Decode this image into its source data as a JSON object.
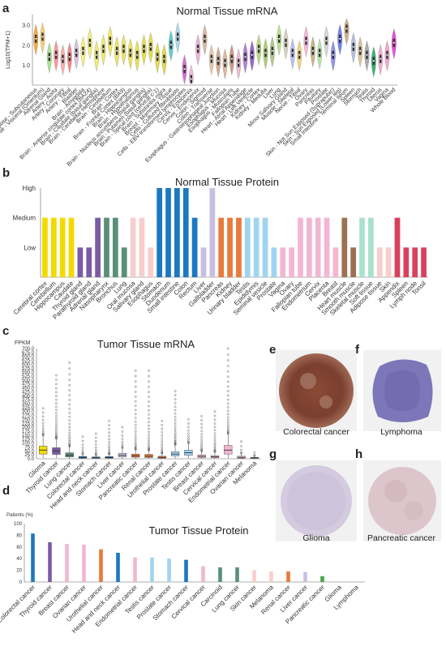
{
  "panels": {
    "a": {
      "letter": "a",
      "title": "Normal Tissue mRNA"
    },
    "b": {
      "letter": "b",
      "title": "Normal Tissue Protein"
    },
    "c": {
      "letter": "c",
      "title": "Tumor Tissue mRNA"
    },
    "d": {
      "letter": "d",
      "title": "Tumor Tissue Protein"
    },
    "e": {
      "letter": "e",
      "caption": "Colorectal cancer"
    },
    "f": {
      "letter": "f",
      "caption": "Lymphoma"
    },
    "g": {
      "letter": "g",
      "caption": "Glioma"
    },
    "h": {
      "letter": "h",
      "caption": "Pancreatic cancer"
    }
  },
  "chart_data": [
    {
      "id": "a",
      "type": "violin",
      "title": "Normal Tissue mRNA",
      "ylabel": "Log10(TPM+1)",
      "yticks": [
        "1.0",
        "2.0",
        "3.0"
      ],
      "ylim": [
        0,
        3.5
      ],
      "categories": [
        "Adipose - Subcutaneous",
        "Adipose - Visceral (Omentum)",
        "Adrenal Gland",
        "Artery - Aorta",
        "Artery - Coronary",
        "Artery - Tibial",
        "Bladder",
        "Brain - Amygdala",
        "Brain - Anterior cingulate cortex (BA24)",
        "Brain - Caudate (basal ganglia)",
        "Brain - Cerebellar Hemisphere",
        "Brain - Cerebellum",
        "Brain - Cortex",
        "Brain - Frontal Cortex (BA9)",
        "Brain - Hippocampus",
        "Brain - Hypothalamus",
        "Brain - Nucleus accumbens (basal ganglia)",
        "Brain - Putamen (basal ganglia)",
        "Brain - Spinal cord (cervical c-1)",
        "Brain - Substantia nigra",
        "Breast - Mammary Tissue",
        "Cells - Cultured fibroblasts",
        "Cells - EBV-transformed lymphocytes",
        "Cervix - Ectocervix",
        "Cervix - Endocervix",
        "Colon - Sigmoid",
        "Colon - Transverse",
        "Esophagus - Gastroesophageal Junction",
        "Esophagus - Mucosa",
        "Esophagus - Muscularis",
        "Fallopian Tube",
        "Heart - Atrial Appendage",
        "Heart - Left Ventricle",
        "Kidney - Cortex",
        "Kidney - Medulla",
        "Liver",
        "Lung",
        "Minor Salivary Gland",
        "Muscle - Skeletal",
        "Nerve - Tibial",
        "Ovary",
        "Pancreas",
        "Pituitary",
        "Prostate",
        "Skin - Not Sun Exposed (Suprapubic)",
        "Skin - Sun Exposed (Lower leg)",
        "Small Intestine - Terminal Ileum",
        "Spleen",
        "Stomach",
        "Testis",
        "Thyroid",
        "Uterus",
        "Vagina",
        "Whole Blood"
      ],
      "medians": [
        2.3,
        2.4,
        1.4,
        1.5,
        1.3,
        1.4,
        1.6,
        1.7,
        2.1,
        1.5,
        1.8,
        2.2,
        1.7,
        1.8,
        1.6,
        1.5,
        1.8,
        1.9,
        1.4,
        1.3,
        2.0,
        2.4,
        0.8,
        0.3,
        1.8,
        2.3,
        1.3,
        1.2,
        1.1,
        1.3,
        1.1,
        1.4,
        1.5,
        1.8,
        1.6,
        1.7,
        2.3,
        2.1,
        1.6,
        1.5,
        2.2,
        1.7,
        1.6,
        2.2,
        1.5,
        2.3,
        2.8,
        1.9,
        1.7,
        1.5,
        1.2,
        1.3,
        1.5,
        2.1
      ],
      "colors": [
        "#f4a32a",
        "#f7c96a",
        "#9ee27f",
        "#f7908f",
        "#f6a7a5",
        "#f57d7c",
        "#d7bcd9",
        "#f7f171",
        "#f4ef6a",
        "#f1ea63",
        "#f0e85e",
        "#efe659",
        "#ede454",
        "#ebe250",
        "#e9e04b",
        "#e7de47",
        "#e5dc42",
        "#e3da3e",
        "#e1d83a",
        "#dfd636",
        "#4dc7c9",
        "#a7d4ea",
        "#cc66cc",
        "#ecb8d8",
        "#eaa9d1",
        "#d9b49a",
        "#e1c3a3",
        "#cfa386",
        "#d9b39a",
        "#c49275",
        "#e9b5cf",
        "#a973d0",
        "#9356c4",
        "#b3d575",
        "#a2cb63",
        "#a9c47c",
        "#b3e07c",
        "#cfcfb7",
        "#b9b7f0",
        "#f4d06d",
        "#f7b0d6",
        "#c4ad7f",
        "#a9e3a3",
        "#d4d4d4",
        "#7f8cf4",
        "#6675ec",
        "#caa780",
        "#aebbd6",
        "#d8bd97",
        "#a3a3a3",
        "#2aa968",
        "#f6a1cb",
        "#f39bc6",
        "#e23fd2"
      ]
    },
    {
      "id": "b",
      "type": "bar",
      "title": "Normal Tissue Protein",
      "ytick_labels": [
        "Low",
        "Medium",
        "High"
      ],
      "levels_scale": {
        "Low": 1,
        "Medium": 2,
        "High": 3
      },
      "categories": [
        "Cerebral cortex",
        "Cerebellum",
        "Hippocampus",
        "Caudate",
        "Thyroid gland",
        "Parathyroid gland",
        "Adrenal gland",
        "Nasopharynx",
        "Bronchus",
        "Lung",
        "Oral mucosa",
        "Salivary gland",
        "Esophagus",
        "Stomach",
        "Duodenum",
        "Small intestine",
        "Colon",
        "Rectum",
        "Liver",
        "Gallbladder",
        "Pancreas",
        "Kidney",
        "Urinary bladder",
        "Testis",
        "Epididymis",
        "Seminal vesicle",
        "Prostate",
        "Vagina",
        "Ovary",
        "Fallopian tube",
        "Endometrium",
        "Cervix",
        "Placenta",
        "Breast",
        "Heart muscle",
        "Smooth muscle",
        "Skeletal muscle",
        "Soft tissue",
        "Adipose tissue",
        "Skin",
        "Appendix",
        "Spleen",
        "Lymph node",
        "Tonsil"
      ],
      "values": [
        2,
        2,
        2,
        2,
        1,
        1,
        2,
        2,
        2,
        1,
        2,
        2,
        1,
        3,
        3,
        3,
        3,
        2,
        1,
        3,
        2,
        2,
        2,
        2,
        2,
        2,
        1,
        1,
        1,
        2,
        2,
        2,
        2,
        1,
        2,
        1,
        2,
        2,
        1,
        1,
        2,
        1,
        1,
        1
      ],
      "colors": [
        "#f2da00",
        "#f2da00",
        "#f2da00",
        "#f2da00",
        "#7b5ba6",
        "#7b5ba6",
        "#7b5ba6",
        "#5a8f79",
        "#5a8f79",
        "#5a8f79",
        "#f8cdcd",
        "#f8cdcd",
        "#f8cdcd",
        "#1c78c0",
        "#1c78c0",
        "#1c78c0",
        "#1c78c0",
        "#1c78c0",
        "#c8bfe0",
        "#c8bfe0",
        "#e87a3c",
        "#e87a3c",
        "#e87a3c",
        "#9fd4f0",
        "#9fd4f0",
        "#9fd4f0",
        "#9fd4f0",
        "#f3b6d2",
        "#f3b6d2",
        "#f3b6d2",
        "#f3b6d2",
        "#f3b6d2",
        "#f3b6d2",
        "#f3b6d2",
        "#9c7152",
        "#9c7152",
        "#a9e2cc",
        "#a9e2cc",
        "#f8cdcd",
        "#f8cdcd",
        "#d8415c",
        "#d8415c",
        "#d8415c",
        "#d8415c"
      ]
    },
    {
      "id": "c",
      "type": "box",
      "title": "Tumor Tissue mRNA",
      "ylabel": "FPKM",
      "yticks": [
        "0.0",
        "25.0",
        "50.0",
        "75.0",
        "100.0",
        "125.0",
        "150.0",
        "175.0",
        "200.0",
        "225.0",
        "250.0",
        "275.0",
        "300.0",
        "325.0",
        "350.0",
        "375.0",
        "400.0",
        "425.0",
        "450.0",
        "475.0",
        "500.0",
        "525.0",
        "550.0",
        "575.0",
        "600.0",
        "625.0",
        "650.0",
        "675.0",
        "700.0"
      ],
      "ylim": [
        0,
        700
      ],
      "categories": [
        "Glioma",
        "Thyroid cancer",
        "Lung cancer",
        "Colorectal cancer",
        "Head and neck cancer",
        "Stomach cancer",
        "Liver cancer",
        "Pancreatic cancer",
        "Renal cancer",
        "Urothelial cancer",
        "Prostate cancer",
        "Testis cancer",
        "Breast cancer",
        "Cervical cancer",
        "Endometrial cancer",
        "Ovarian cancer",
        "Melanoma"
      ],
      "boxes": [
        {
          "q1": 30,
          "median": 55,
          "q3": 80,
          "whisker_low": 5,
          "whisker_high": 150,
          "outliers_max": 320
        },
        {
          "q1": 28,
          "median": 50,
          "q3": 70,
          "whisker_low": 5,
          "whisker_high": 130,
          "outliers_max": 530
        },
        {
          "q1": 12,
          "median": 22,
          "q3": 38,
          "whisker_low": 0,
          "whisker_high": 80,
          "outliers_max": 610
        },
        {
          "q1": 4,
          "median": 8,
          "q3": 15,
          "whisker_low": 0,
          "whisker_high": 30,
          "outliers_max": 140
        },
        {
          "q1": 3,
          "median": 6,
          "q3": 12,
          "whisker_low": 0,
          "whisker_high": 25,
          "outliers_max": 160
        },
        {
          "q1": 4,
          "median": 8,
          "q3": 14,
          "whisker_low": 0,
          "whisker_high": 30,
          "outliers_max": 240
        },
        {
          "q1": 12,
          "median": 22,
          "q3": 35,
          "whisker_low": 0,
          "whisker_high": 70,
          "outliers_max": 200
        },
        {
          "q1": 10,
          "median": 18,
          "q3": 30,
          "whisker_low": 0,
          "whisker_high": 60,
          "outliers_max": 560
        },
        {
          "q1": 8,
          "median": 16,
          "q3": 28,
          "whisker_low": 0,
          "whisker_high": 55,
          "outliers_max": 560
        },
        {
          "q1": 4,
          "median": 9,
          "q3": 16,
          "whisker_low": 0,
          "whisker_high": 35,
          "outliers_max": 240
        },
        {
          "q1": 18,
          "median": 30,
          "q3": 45,
          "whisker_low": 2,
          "whisker_high": 90,
          "outliers_max": 430
        },
        {
          "q1": 22,
          "median": 38,
          "q3": 55,
          "whisker_low": 3,
          "whisker_high": 100,
          "outliers_max": 250
        },
        {
          "q1": 8,
          "median": 15,
          "q3": 24,
          "whisker_low": 0,
          "whisker_high": 50,
          "outliers_max": 270
        },
        {
          "q1": 6,
          "median": 12,
          "q3": 20,
          "whisker_low": 0,
          "whisker_high": 45,
          "outliers_max": 300
        },
        {
          "q1": 30,
          "median": 55,
          "q3": 85,
          "whisker_low": 3,
          "whisker_high": 160,
          "outliers_max": 700
        },
        {
          "q1": 4,
          "median": 9,
          "q3": 16,
          "whisker_low": 0,
          "whisker_high": 35,
          "outliers_max": 110
        },
        {
          "q1": 2,
          "median": 5,
          "q3": 9,
          "whisker_low": 0,
          "whisker_high": 18,
          "outliers_max": 40
        }
      ],
      "colors": [
        "#f2da00",
        "#7b5ba6",
        "#5a8f79",
        "#1c78c0",
        "#1c78c0",
        "#1c78c0",
        "#c8bfe0",
        "#e87a3c",
        "#e87a3c",
        "#e87a3c",
        "#9fd4f0",
        "#9fd4f0",
        "#f3b6d2",
        "#f3b6d2",
        "#f3b6d2",
        "#f3b6d2",
        "#f8cdcd"
      ]
    },
    {
      "id": "d",
      "type": "bar",
      "title": "Tumor Tissue Protein",
      "ylabel": "Patients (%)",
      "yticks": [
        "0",
        "20",
        "40",
        "60",
        "80",
        "100"
      ],
      "ylim": [
        0,
        100
      ],
      "categories": [
        "Colorectal cancer",
        "Thyroid cancer",
        "Breast cancer",
        "Ovarian cancer",
        "Urothelial cancer",
        "Head and neck cancer",
        "Endometrial cancer",
        "Testis cancer",
        "Prostate cancer",
        "Stomach cancer",
        "Cervical cancer",
        "Carcinoid",
        "Lung cancer",
        "Skin cancer",
        "Melanoma",
        "Renal cancer",
        "Liver cancer",
        "Pancreatic cancer",
        "Glioma",
        "Lymphoma"
      ],
      "values": [
        83,
        68,
        65,
        64,
        56,
        50,
        42,
        42,
        40,
        38,
        27,
        25,
        25,
        20,
        18,
        18,
        17,
        10,
        0,
        0
      ],
      "colors": [
        "#1c78c0",
        "#7b5ba6",
        "#f3b6d2",
        "#f3b6d2",
        "#e87a3c",
        "#1c78c0",
        "#f3b6d2",
        "#9fd4f0",
        "#9fd4f0",
        "#1c78c0",
        "#f3b6d2",
        "#5a8f79",
        "#5a8f79",
        "#f8cdcd",
        "#f8cdcd",
        "#e87a3c",
        "#c8bfe0",
        "#4aa64a",
        "#f2da00",
        "#f8cdcd"
      ]
    }
  ]
}
